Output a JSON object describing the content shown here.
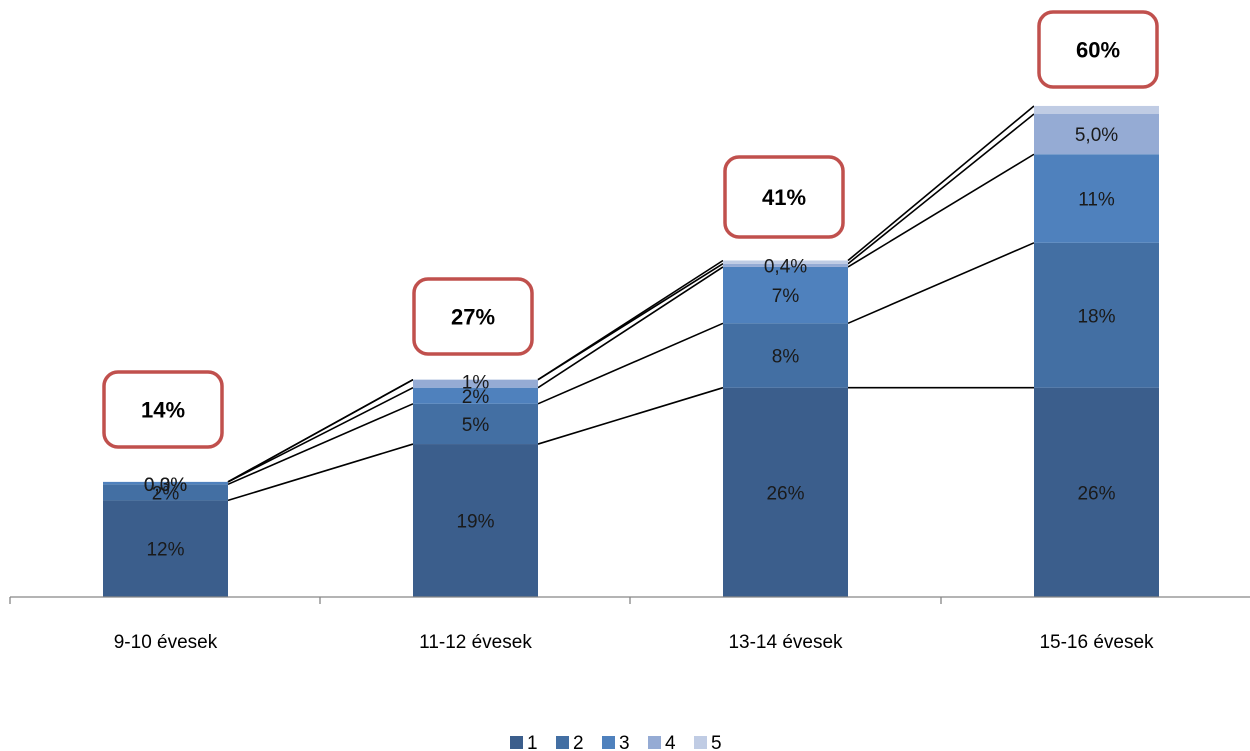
{
  "chart_data": {
    "type": "bar",
    "stacked": true,
    "categories": [
      "9-10 évesek",
      "11-12 évesek",
      "13-14 évesek",
      "15-16 évesek"
    ],
    "series": [
      {
        "name": "1",
        "color": "#3b5e8c",
        "values": [
          12,
          19,
          26,
          26
        ],
        "labels": [
          "12%",
          "19%",
          "26%",
          "26%"
        ]
      },
      {
        "name": "2",
        "color": "#436fa3",
        "values": [
          2,
          5,
          8,
          18
        ],
        "labels": [
          "2%",
          "5%",
          "8%",
          "18%"
        ]
      },
      {
        "name": "3",
        "color": "#4f81bd",
        "values": [
          0.3,
          2,
          7,
          11
        ],
        "labels": [
          "0,3%",
          "2%",
          "7%",
          "11%"
        ]
      },
      {
        "name": "4",
        "color": "#95abd4",
        "values": [
          0.0,
          1,
          0.4,
          5.0
        ],
        "labels": [
          "0,0%",
          "1%",
          "0,4%",
          "5,0%"
        ]
      },
      {
        "name": "5",
        "color": "#c0cce4",
        "values": [
          0.0,
          0.0,
          0.4,
          1.0
        ],
        "labels": [
          "",
          "",
          "",
          ""
        ]
      }
    ],
    "totals": [
      "14%",
      "27%",
      "41%",
      "60%"
    ],
    "ylim": [
      0,
      60
    ],
    "grid": false,
    "legend_position": "bottom",
    "series_lines": true
  }
}
